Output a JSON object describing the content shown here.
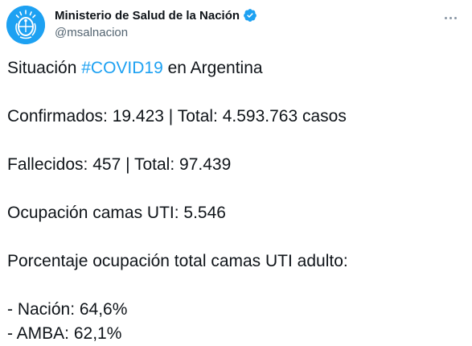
{
  "account": {
    "display_name": "Ministerio de Salud de la Nación",
    "handle": "@msalnacion",
    "verified": true,
    "avatar_color": "#1da1f2",
    "verified_color": "#1da1f2"
  },
  "tweet": {
    "line1_prefix": "Situación ",
    "hashtag": "#COVID19",
    "line1_suffix": " en Argentina",
    "confirmed": "Confirmados: 19.423 | Total: 4.593.763 casos",
    "deaths": "Fallecidos: 457 | Total: 97.439",
    "icu_beds": "Ocupación camas UTI: 5.546",
    "occupancy_title": "Porcentaje ocupación total camas UTI adulto:",
    "nation": "- Nación: 64,6%",
    "amba": "- AMBA: 62,1%"
  },
  "icons": {
    "avatar": "argentina-coat-of-arms-icon",
    "verified": "verified-badge-icon",
    "more": "more-options-icon"
  },
  "colors": {
    "text": "#0f1419",
    "secondary": "#536471",
    "link": "#1da1f2"
  }
}
